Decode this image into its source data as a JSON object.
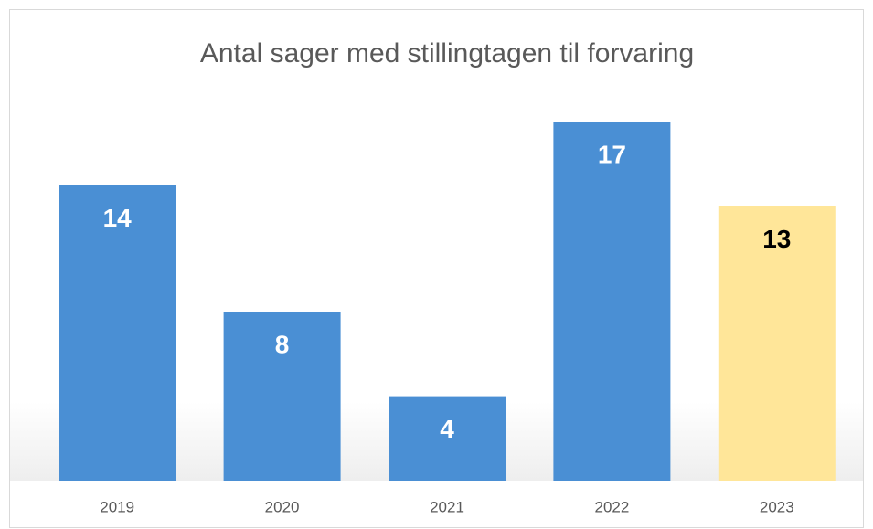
{
  "chart_data": {
    "type": "bar",
    "title": "Antal sager med stillingtagen til forvaring",
    "categories": [
      "2019",
      "2020",
      "2021",
      "2022",
      "2023"
    ],
    "values": [
      14,
      8,
      4,
      17,
      13
    ],
    "colors": [
      "#4a8fd4",
      "#4a8fd4",
      "#4a8fd4",
      "#4a8fd4",
      "#ffe699"
    ],
    "label_colors": [
      "#ffffff",
      "#ffffff",
      "#ffffff",
      "#ffffff",
      "#000000"
    ],
    "grid": false
  }
}
